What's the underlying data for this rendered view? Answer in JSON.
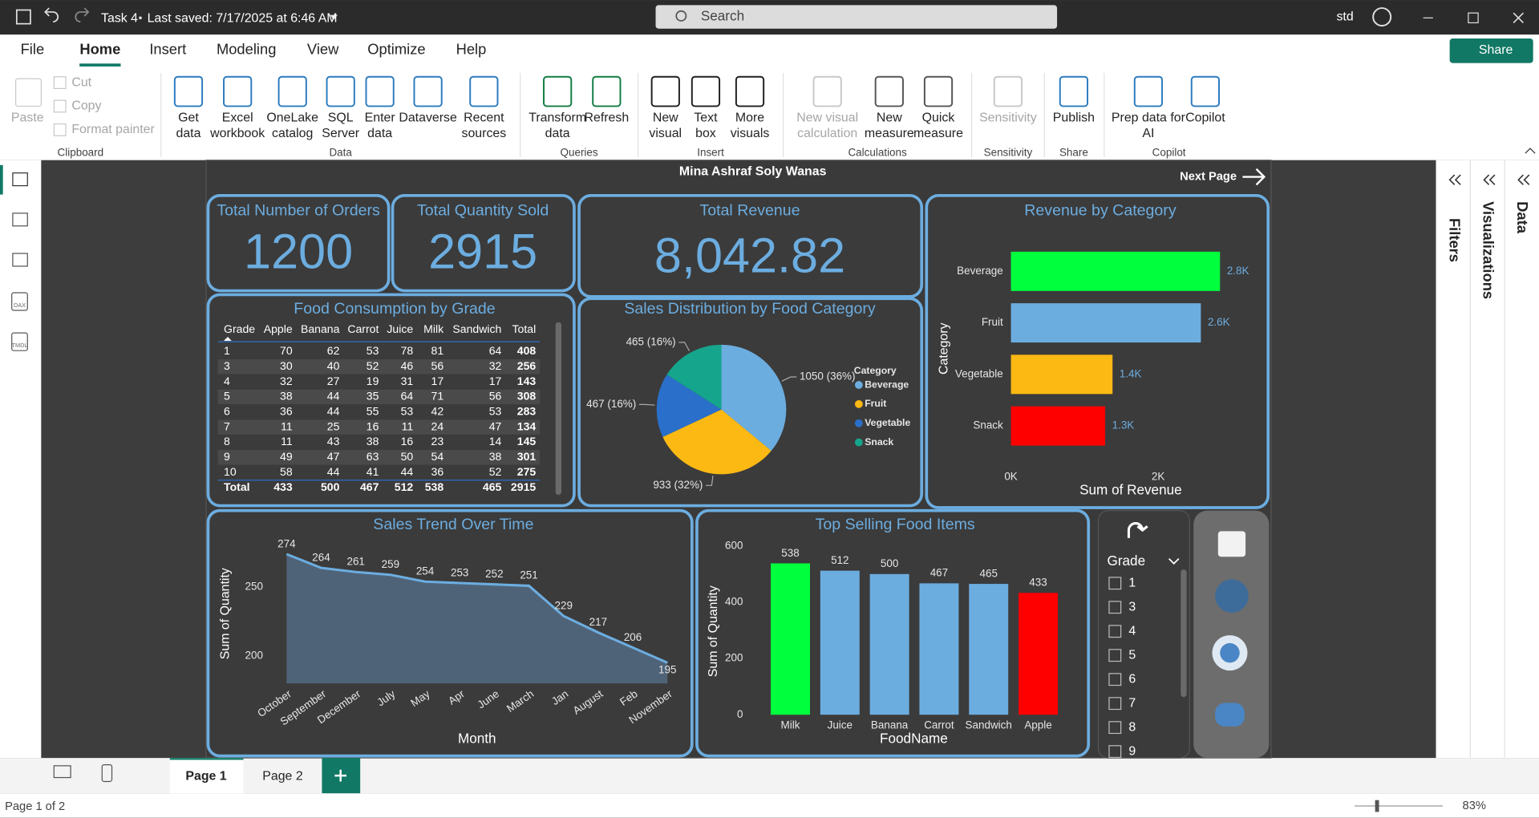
{
  "title_bar": {
    "file_name": "Task 4",
    "saved": "Last saved: 7/17/2025 at 6:46 AM",
    "search": "Search",
    "user": "std"
  },
  "menu": [
    "File",
    "Home",
    "Insert",
    "Modeling",
    "View",
    "Optimize",
    "Help"
  ],
  "share": "Share",
  "ribbon": [
    {
      "group": "Clipboard",
      "items": [
        [
          "Paste"
        ],
        [
          "Cut"
        ],
        [
          "Copy"
        ],
        [
          "Format painter"
        ]
      ]
    },
    {
      "group": "Data",
      "items": [
        [
          "Get",
          "data"
        ],
        [
          "Excel",
          "workbook"
        ],
        [
          "OneLake",
          "catalog"
        ],
        [
          "SQL",
          "Server"
        ],
        [
          "Enter",
          "data"
        ],
        [
          "Dataverse"
        ],
        [
          "Recent",
          "sources"
        ]
      ]
    },
    {
      "group": "Queries",
      "items": [
        [
          "Transform",
          "data"
        ],
        [
          "Refresh"
        ]
      ]
    },
    {
      "group": "Insert",
      "items": [
        [
          "New",
          "visual"
        ],
        [
          "Text",
          "box"
        ],
        [
          "More",
          "visuals"
        ]
      ]
    },
    {
      "group": "Calculations",
      "items": [
        [
          "New visual",
          "calculation"
        ],
        [
          "New",
          "measure"
        ],
        [
          "Quick",
          "measure"
        ]
      ]
    },
    {
      "group": "Sensitivity",
      "items": [
        [
          "Sensitivity"
        ]
      ]
    },
    {
      "group": "Share",
      "items": [
        [
          "Publish"
        ]
      ]
    },
    {
      "group": "Copilot",
      "items": [
        [
          "Prep data for",
          "AI"
        ],
        [
          "Copilot"
        ]
      ]
    }
  ],
  "left_nav": [
    "DAX",
    "TMDL"
  ],
  "panes": [
    "Filters",
    "Visualizations",
    "Data"
  ],
  "report": {
    "author": "Mina Ashraf Soly Wanas",
    "next_page": "Next Page"
  },
  "cards": [
    {
      "title": "Total Number of Orders",
      "value": "1200"
    },
    {
      "title": "Total Quantity Sold",
      "value": "2915"
    },
    {
      "title": "Total Revenue",
      "value": "8,042.82"
    }
  ],
  "table": {
    "title": "Food Consumption by Grade",
    "header": [
      "Grade",
      "Apple",
      "Banana",
      "Carrot",
      "Juice",
      "Milk",
      "Sandwich",
      "Total"
    ],
    "rows": [
      [
        1,
        70,
        62,
        53,
        78,
        81,
        64,
        408
      ],
      [
        3,
        30,
        40,
        52,
        46,
        56,
        32,
        256
      ],
      [
        4,
        32,
        27,
        19,
        31,
        17,
        17,
        143
      ],
      [
        5,
        38,
        44,
        35,
        64,
        71,
        56,
        308
      ],
      [
        6,
        36,
        44,
        55,
        53,
        42,
        53,
        283
      ],
      [
        7,
        11,
        25,
        16,
        11,
        24,
        47,
        134
      ],
      [
        8,
        11,
        43,
        38,
        16,
        23,
        14,
        145
      ],
      [
        9,
        49,
        47,
        63,
        50,
        54,
        38,
        301
      ],
      [
        10,
        58,
        44,
        41,
        44,
        36,
        52,
        275
      ]
    ],
    "total": [
      "Total",
      433,
      500,
      467,
      512,
      538,
      465,
      2915
    ]
  },
  "slicer": {
    "title": "Grade",
    "items": [
      1,
      3,
      4,
      5,
      6,
      7,
      8,
      9
    ]
  },
  "pages": [
    "Page 1",
    "Page 2"
  ],
  "status": {
    "page": "Page 1 of 2",
    "zoom": "83%"
  },
  "chart_data": [
    {
      "type": "pie",
      "title": "Sales Distribution by Food Category",
      "legend_title": "Category",
      "legend": "right",
      "categories": [
        "Beverage",
        "Fruit",
        "Vegetable",
        "Snack"
      ],
      "values": [
        1050,
        933,
        467,
        465
      ],
      "value_labels": [
        "1050 (36%)",
        "933 (32%)",
        "467 (16%)",
        "465 (16%)"
      ],
      "colors": [
        "#6cade0",
        "#fdb913",
        "#2a6fc9",
        "#15a58c"
      ]
    },
    {
      "type": "bar",
      "orientation": "horizontal",
      "title": "Revenue by Category",
      "categories": [
        "Beverage",
        "Fruit",
        "Vegetable",
        "Snack"
      ],
      "values": [
        2840,
        2580,
        1380,
        1280
      ],
      "value_labels": [
        "2.8K",
        "2.6K",
        "1.4K",
        "1.3K"
      ],
      "colors": [
        "#00ff3c",
        "#6cade0",
        "#fdb913",
        "#ff0000"
      ],
      "x_label": "Sum of Revenue",
      "y_label": "Category",
      "xlim": [
        0,
        3300
      ],
      "xticks": [
        {
          "value": 0,
          "label": "0K"
        },
        {
          "value": 2000,
          "label": "2K"
        }
      ]
    },
    {
      "type": "area",
      "title": "Sales Trend Over Time",
      "categories": [
        "October",
        "September",
        "December",
        "July",
        "May",
        "Apr",
        "June",
        "March",
        "Jan",
        "August",
        "Feb",
        "November"
      ],
      "values": [
        274,
        264,
        261,
        259,
        254,
        253,
        252,
        251,
        229,
        217,
        206,
        195
      ],
      "color": "#6cade0",
      "fill": "#4f6378",
      "x_label": "Month",
      "y_label": "Sum of Quantity",
      "ylim": [
        180,
        280
      ],
      "yticks": [
        200,
        250
      ]
    },
    {
      "type": "bar",
      "orientation": "vertical",
      "title": "Top Selling Food Items",
      "categories": [
        "Milk",
        "Juice",
        "Banana",
        "Carrot",
        "Sandwich",
        "Apple"
      ],
      "values": [
        538,
        512,
        500,
        467,
        465,
        433
      ],
      "colors": [
        "#00ff3c",
        "#6cade0",
        "#6cade0",
        "#6cade0",
        "#6cade0",
        "#ff0000"
      ],
      "x_label": "FoodName",
      "y_label": "Sum of Quantity",
      "ylim": [
        0,
        600
      ],
      "yticks": [
        0,
        200,
        400,
        600
      ]
    }
  ]
}
